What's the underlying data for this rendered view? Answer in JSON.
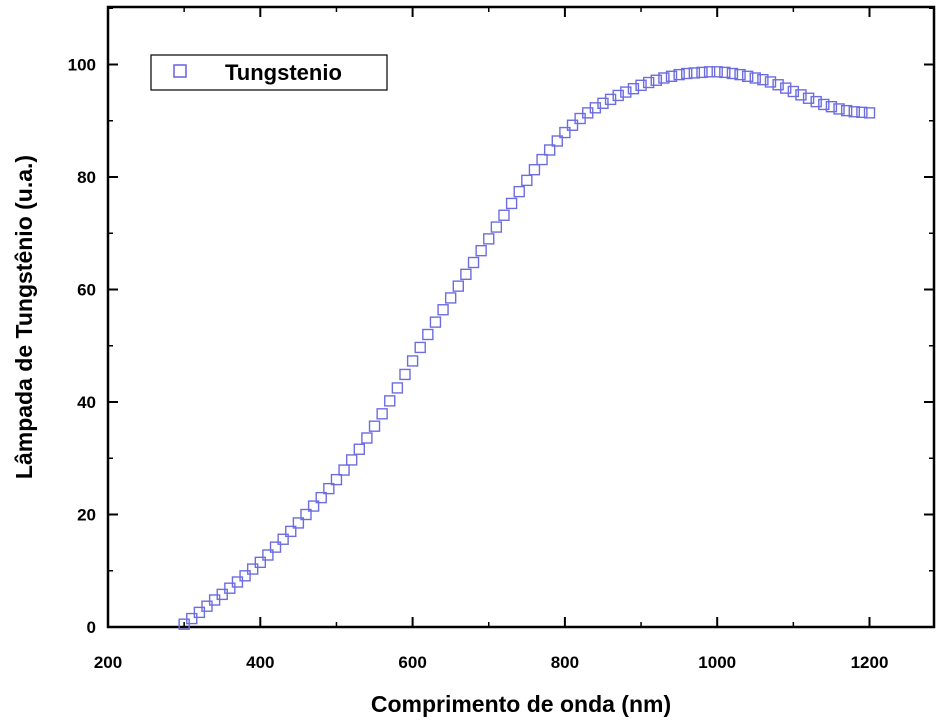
{
  "chart_data": {
    "type": "scatter",
    "xlabel": "Comprimento de onda (nm)",
    "ylabel": "Lâmpada de Tungstênio (u.a.)",
    "xlim": [
      200,
      1300
    ],
    "ylim": [
      0,
      110
    ],
    "xticks": [
      200,
      400,
      600,
      800,
      1000,
      1200
    ],
    "yticks": [
      0,
      20,
      40,
      60,
      80,
      100
    ],
    "grid": false,
    "legend_position": "top-left",
    "marker": "open-square",
    "marker_color": "#6d6de0",
    "series": [
      {
        "name": "Tungstenio",
        "points": [
          [
            300,
            0.5
          ],
          [
            310,
            1.5
          ],
          [
            320,
            2.6
          ],
          [
            330,
            3.7
          ],
          [
            340,
            4.8
          ],
          [
            350,
            5.8
          ],
          [
            360,
            6.9
          ],
          [
            370,
            8.0
          ],
          [
            380,
            9.1
          ],
          [
            390,
            10.3
          ],
          [
            400,
            11.5
          ],
          [
            410,
            12.8
          ],
          [
            420,
            14.2
          ],
          [
            430,
            15.6
          ],
          [
            440,
            17.0
          ],
          [
            450,
            18.5
          ],
          [
            460,
            20.0
          ],
          [
            470,
            21.5
          ],
          [
            480,
            23.0
          ],
          [
            490,
            24.6
          ],
          [
            500,
            26.2
          ],
          [
            510,
            27.9
          ],
          [
            520,
            29.7
          ],
          [
            530,
            31.6
          ],
          [
            540,
            33.6
          ],
          [
            550,
            35.7
          ],
          [
            560,
            37.9
          ],
          [
            570,
            40.2
          ],
          [
            580,
            42.5
          ],
          [
            590,
            44.9
          ],
          [
            600,
            47.3
          ],
          [
            610,
            49.7
          ],
          [
            620,
            52.0
          ],
          [
            630,
            54.2
          ],
          [
            640,
            56.4
          ],
          [
            650,
            58.5
          ],
          [
            660,
            60.6
          ],
          [
            670,
            62.7
          ],
          [
            680,
            64.8
          ],
          [
            690,
            66.9
          ],
          [
            700,
            69.0
          ],
          [
            710,
            71.1
          ],
          [
            720,
            73.2
          ],
          [
            730,
            75.3
          ],
          [
            740,
            77.4
          ],
          [
            750,
            79.4
          ],
          [
            760,
            81.3
          ],
          [
            770,
            83.1
          ],
          [
            780,
            84.8
          ],
          [
            790,
            86.4
          ],
          [
            800,
            87.9
          ],
          [
            810,
            89.2
          ],
          [
            820,
            90.4
          ],
          [
            830,
            91.4
          ],
          [
            840,
            92.3
          ],
          [
            850,
            93.1
          ],
          [
            860,
            93.8
          ],
          [
            870,
            94.5
          ],
          [
            880,
            95.1
          ],
          [
            890,
            95.7
          ],
          [
            900,
            96.3
          ],
          [
            910,
            96.8
          ],
          [
            920,
            97.2
          ],
          [
            930,
            97.6
          ],
          [
            940,
            97.9
          ],
          [
            950,
            98.2
          ],
          [
            960,
            98.4
          ],
          [
            970,
            98.5
          ],
          [
            980,
            98.6
          ],
          [
            990,
            98.7
          ],
          [
            1000,
            98.7
          ],
          [
            1010,
            98.6
          ],
          [
            1020,
            98.4
          ],
          [
            1030,
            98.2
          ],
          [
            1040,
            97.9
          ],
          [
            1050,
            97.6
          ],
          [
            1060,
            97.3
          ],
          [
            1070,
            96.9
          ],
          [
            1080,
            96.4
          ],
          [
            1090,
            95.8
          ],
          [
            1100,
            95.2
          ],
          [
            1110,
            94.6
          ],
          [
            1120,
            94.0
          ],
          [
            1130,
            93.4
          ],
          [
            1140,
            92.9
          ],
          [
            1150,
            92.5
          ],
          [
            1160,
            92.1
          ],
          [
            1170,
            91.8
          ],
          [
            1180,
            91.6
          ],
          [
            1190,
            91.5
          ],
          [
            1200,
            91.4
          ]
        ]
      }
    ]
  }
}
